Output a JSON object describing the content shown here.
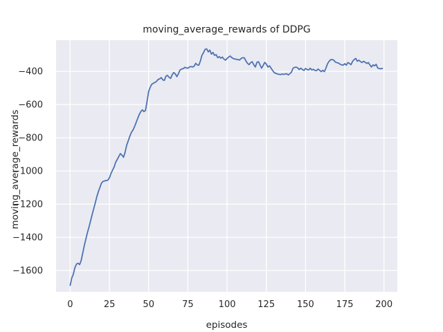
{
  "figure": {
    "background_color": "#ffffff",
    "plot_background_color": "#eaeaf2",
    "grid_color": "#ffffff",
    "line_color": "#4c72b0",
    "text_color": "#262626"
  },
  "chart_data": {
    "type": "line",
    "title": "moving_average_rewards of DDPG",
    "xlabel": "episodes",
    "ylabel": "moving_average_rewards",
    "grid": true,
    "legend_position": "none",
    "xlim": [
      -9,
      208.5
    ],
    "ylim": [
      -1729,
      -212
    ],
    "xticks": [
      0,
      25,
      50,
      75,
      100,
      125,
      150,
      175,
      200
    ],
    "yticks": [
      -400,
      -600,
      -800,
      -1000,
      -1200,
      -1400,
      -1600
    ],
    "xtick_labels": [
      "0",
      "25",
      "50",
      "75",
      "100",
      "125",
      "150",
      "175",
      "200"
    ],
    "ytick_labels": [
      "−400",
      "−600",
      "−800",
      "−1000",
      "−1200",
      "−1400",
      "−1600"
    ],
    "series": [
      {
        "name": "moving_average_rewards",
        "x_start": 0,
        "x_step": 1,
        "values": [
          -1690,
          -1645,
          -1623,
          -1583,
          -1562,
          -1556,
          -1565,
          -1540,
          -1496,
          -1450,
          -1410,
          -1372,
          -1338,
          -1300,
          -1264,
          -1228,
          -1192,
          -1155,
          -1124,
          -1098,
          -1073,
          -1063,
          -1060,
          -1058,
          -1056,
          -1042,
          -1016,
          -996,
          -976,
          -948,
          -931,
          -913,
          -896,
          -905,
          -918,
          -888,
          -846,
          -818,
          -792,
          -768,
          -754,
          -734,
          -709,
          -684,
          -661,
          -643,
          -632,
          -643,
          -636,
          -580,
          -523,
          -496,
          -478,
          -472,
          -467,
          -461,
          -449,
          -446,
          -438,
          -451,
          -455,
          -430,
          -424,
          -436,
          -443,
          -421,
          -407,
          -416,
          -432,
          -414,
          -392,
          -386,
          -384,
          -376,
          -379,
          -381,
          -374,
          -371,
          -374,
          -369,
          -352,
          -361,
          -363,
          -338,
          -303,
          -287,
          -268,
          -265,
          -283,
          -272,
          -296,
          -286,
          -304,
          -299,
          -318,
          -311,
          -321,
          -314,
          -326,
          -333,
          -322,
          -314,
          -308,
          -318,
          -323,
          -326,
          -328,
          -330,
          -332,
          -322,
          -318,
          -319,
          -338,
          -351,
          -360,
          -348,
          -342,
          -360,
          -374,
          -346,
          -342,
          -361,
          -381,
          -365,
          -346,
          -356,
          -374,
          -367,
          -380,
          -395,
          -408,
          -412,
          -416,
          -418,
          -420,
          -416,
          -419,
          -416,
          -415,
          -422,
          -414,
          -406,
          -382,
          -376,
          -375,
          -379,
          -389,
          -381,
          -389,
          -395,
          -383,
          -389,
          -392,
          -381,
          -392,
          -388,
          -395,
          -396,
          -386,
          -394,
          -402,
          -394,
          -402,
          -380,
          -355,
          -340,
          -330,
          -329,
          -333,
          -344,
          -348,
          -350,
          -357,
          -361,
          -363,
          -354,
          -363,
          -347,
          -353,
          -360,
          -340,
          -329,
          -322,
          -339,
          -333,
          -341,
          -347,
          -340,
          -345,
          -353,
          -347,
          -361,
          -374,
          -361,
          -367,
          -358,
          -380,
          -383,
          -385,
          -382
        ]
      }
    ]
  }
}
